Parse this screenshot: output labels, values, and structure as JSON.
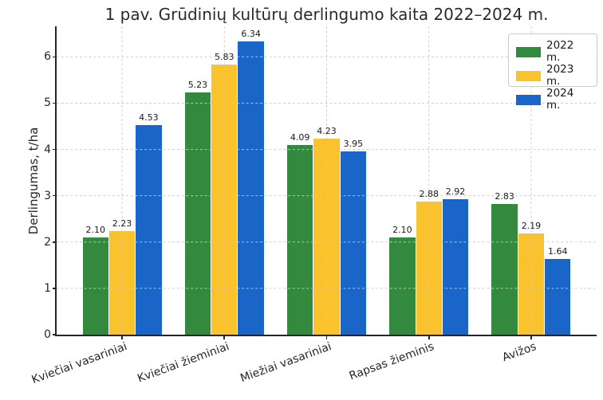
{
  "chart_data": {
    "type": "bar",
    "title": "1 pav. Grūdinių kultūrų derlingumo kaita 2022–2024 m.",
    "ylabel": "Derlingumas, t/ha",
    "xlabel": "",
    "categories": [
      "Kviečiai vasariniai",
      "Kviečiai žieminiai",
      "Miežiai vasariniai",
      "Rapsas žieminis",
      "Avižos"
    ],
    "series": [
      {
        "name": "2022 m.",
        "color": "#338a3e",
        "values": [
          2.1,
          5.23,
          4.09,
          2.1,
          2.83
        ]
      },
      {
        "name": "2023 m.",
        "color": "#fac22d",
        "values": [
          2.23,
          5.83,
          4.23,
          2.88,
          2.19
        ]
      },
      {
        "name": "2024 m.",
        "color": "#1966c8",
        "values": [
          4.53,
          6.34,
          3.95,
          2.92,
          1.64
        ]
      }
    ],
    "yticks": [
      0,
      1,
      2,
      3,
      4,
      5,
      6
    ],
    "ylim": [
      0,
      6.66
    ],
    "value_label_decimals": 2,
    "grid": true,
    "grid_style": "dashed",
    "legend_position": "upper right",
    "colors": {
      "axis": "#262626",
      "grid": "#c9c9c9",
      "value_label": "#1a1a1a",
      "background": "#ffffff"
    }
  }
}
